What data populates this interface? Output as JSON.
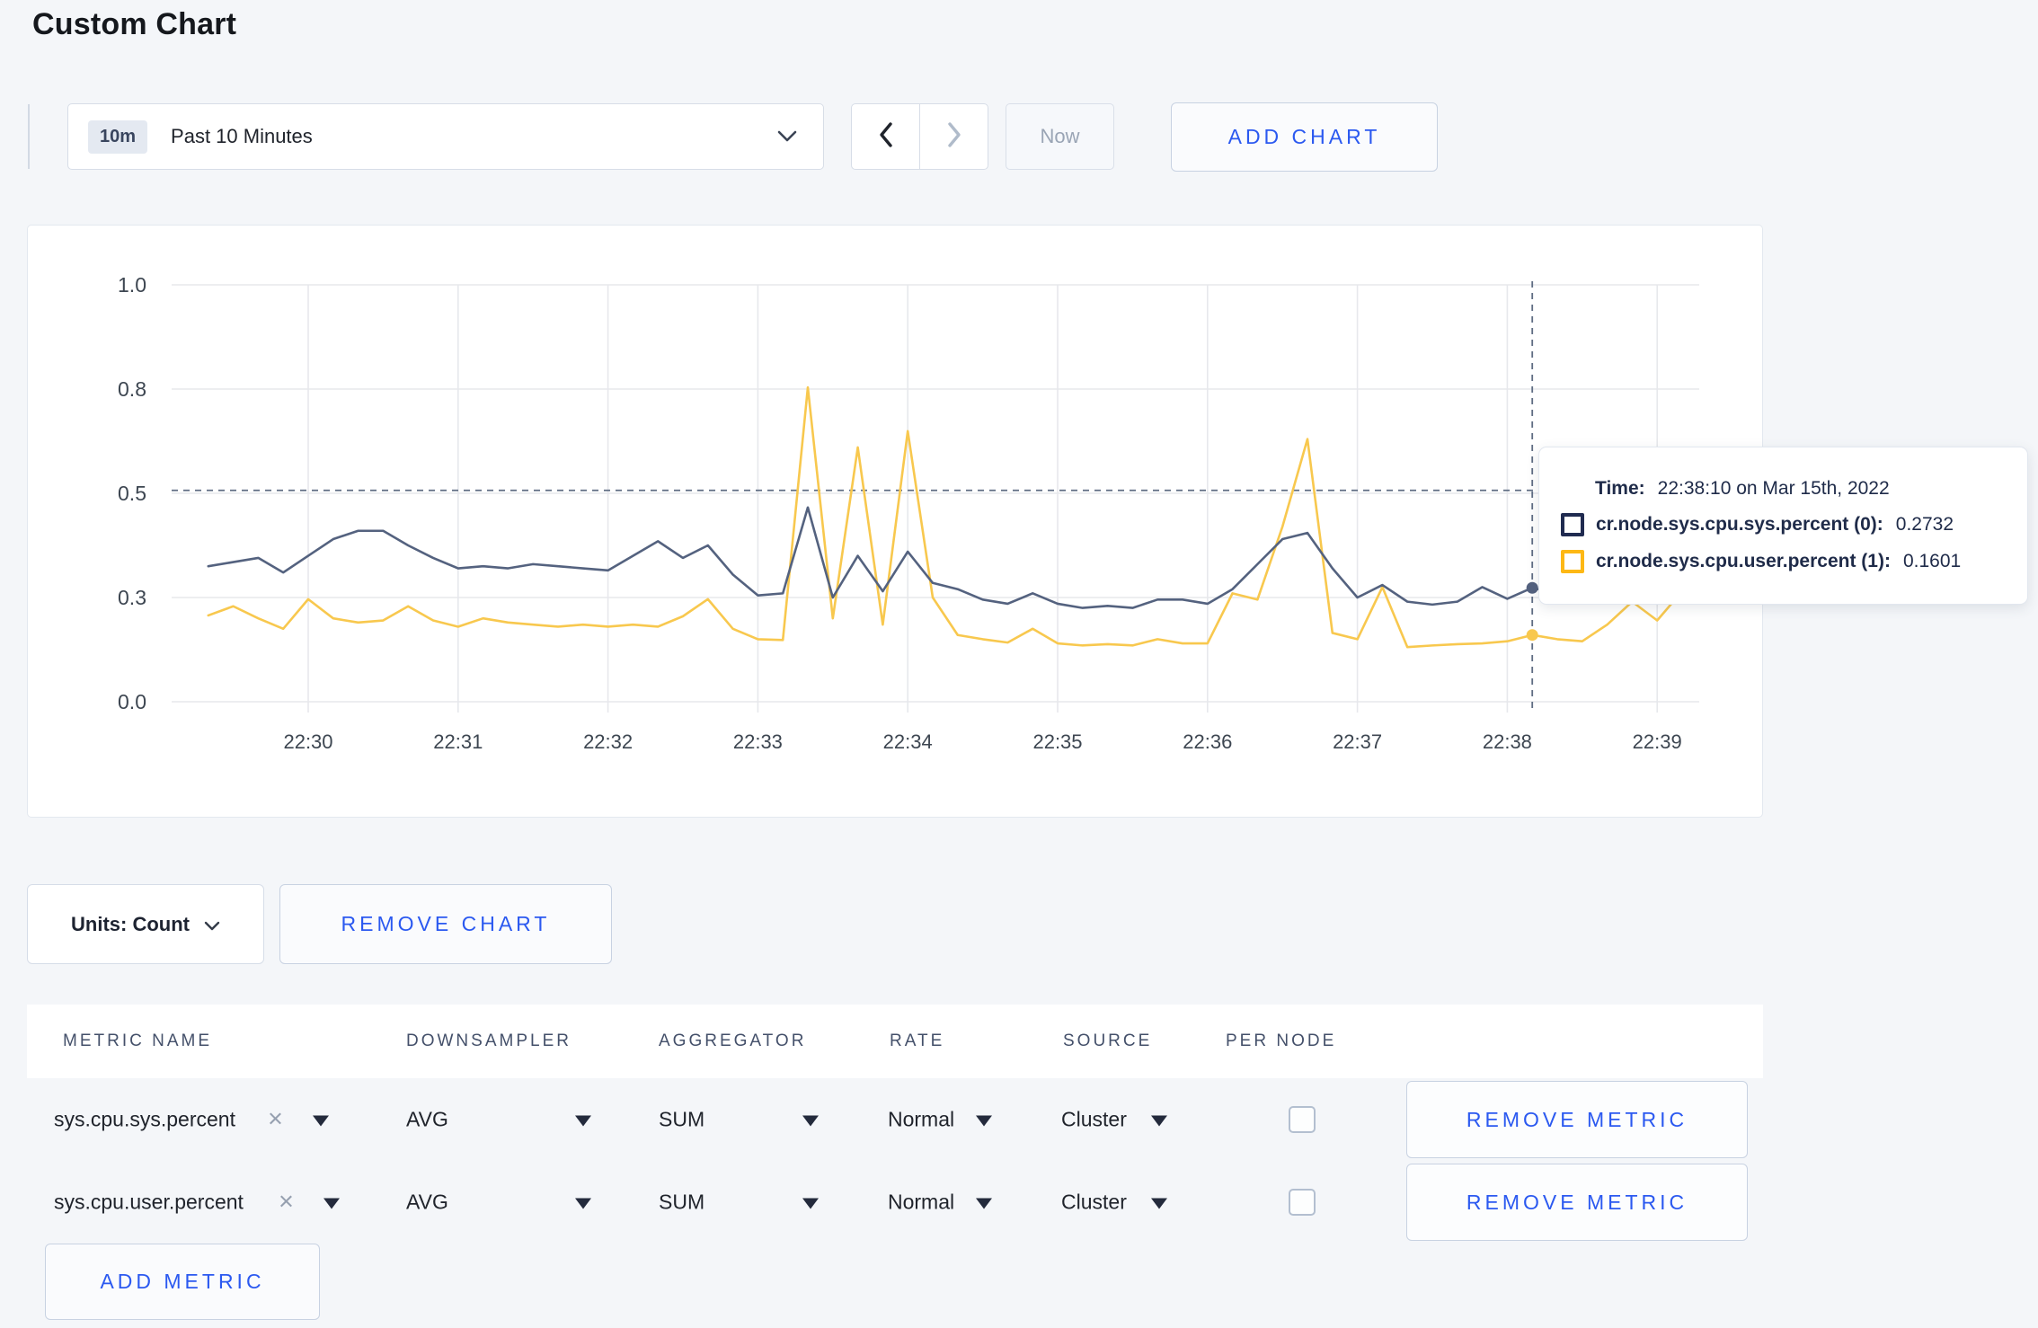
{
  "page": {
    "title": "Custom Chart"
  },
  "toolbar": {
    "time_selector": {
      "badge": "10m",
      "label": "Past 10 Minutes"
    },
    "now_button": "Now",
    "add_chart_button": "ADD CHART"
  },
  "chart_data": {
    "type": "line",
    "title": "",
    "xlabel": "",
    "ylabel": "",
    "x_tick_labels": [
      "22:30",
      "22:31",
      "22:32",
      "22:33",
      "22:34",
      "22:35",
      "22:36",
      "22:37",
      "22:38",
      "22:39"
    ],
    "x_tick_seconds": [
      0,
      60,
      120,
      180,
      240,
      300,
      360,
      420,
      480,
      540
    ],
    "y_ticks": [
      {
        "value": 0.0,
        "label": "0.0"
      },
      {
        "value": 0.25,
        "label": "0.3"
      },
      {
        "value": 0.5,
        "label": "0.5"
      },
      {
        "value": 0.75,
        "label": "0.8"
      },
      {
        "value": 1.0,
        "label": "1.0"
      }
    ],
    "ylim": [
      0,
      1.0
    ],
    "grid": true,
    "start_seconds": -40,
    "step_seconds": 10,
    "series": [
      {
        "name": "cr.node.sys.cpu.sys.percent",
        "color": "#54627f",
        "values": [
          0.325,
          0.335,
          0.345,
          0.31,
          0.35,
          0.39,
          0.41,
          0.41,
          0.375,
          0.345,
          0.32,
          0.325,
          0.32,
          0.33,
          0.325,
          0.32,
          0.315,
          0.35,
          0.385,
          0.345,
          0.375,
          0.305,
          0.255,
          0.26,
          0.466,
          0.25,
          0.35,
          0.265,
          0.36,
          0.285,
          0.27,
          0.245,
          0.235,
          0.26,
          0.235,
          0.225,
          0.23,
          0.225,
          0.245,
          0.245,
          0.235,
          0.27,
          0.33,
          0.39,
          0.405,
          0.32,
          0.25,
          0.28,
          0.24,
          0.233,
          0.24,
          0.275,
          0.247,
          0.2732,
          0.26,
          0.285,
          0.305,
          0.295,
          0.29,
          0.295
        ]
      },
      {
        "name": "cr.node.sys.cpu.user.percent",
        "color": "#f8c84e",
        "values": [
          0.207,
          0.229,
          0.2,
          0.175,
          0.246,
          0.2,
          0.19,
          0.195,
          0.229,
          0.195,
          0.18,
          0.2,
          0.19,
          0.185,
          0.18,
          0.185,
          0.18,
          0.185,
          0.18,
          0.205,
          0.246,
          0.175,
          0.15,
          0.148,
          0.754,
          0.2,
          0.61,
          0.185,
          0.649,
          0.25,
          0.16,
          0.15,
          0.142,
          0.175,
          0.14,
          0.135,
          0.138,
          0.135,
          0.15,
          0.14,
          0.14,
          0.26,
          0.245,
          0.42,
          0.63,
          0.165,
          0.15,
          0.275,
          0.131,
          0.135,
          0.138,
          0.14,
          0.145,
          0.1601,
          0.15,
          0.145,
          0.185,
          0.24,
          0.195,
          0.265
        ]
      }
    ],
    "crosshair": {
      "time_seconds": 490,
      "hline_value": 0.507,
      "color": "#5f6d83"
    },
    "hover_points": [
      {
        "series": 0,
        "time_seconds": 490,
        "value": 0.2732
      },
      {
        "series": 1,
        "time_seconds": 490,
        "value": 0.1601
      }
    ],
    "legend_position": "tooltip"
  },
  "tooltip": {
    "time_label": "Time:",
    "time_value": "22:38:10 on Mar 15th, 2022",
    "series": [
      {
        "label": "cr.node.sys.cpu.sys.percent (0):",
        "value": "0.2732",
        "swatch": "#202b50"
      },
      {
        "label": "cr.node.sys.cpu.user.percent (1):",
        "value": "0.1601",
        "swatch": "#fdb815"
      }
    ]
  },
  "chart_controls": {
    "units_button": "Units: Count",
    "remove_chart_button": "REMOVE CHART"
  },
  "metrics_table": {
    "headers": [
      "METRIC NAME",
      "DOWNSAMPLER",
      "AGGREGATOR",
      "RATE",
      "SOURCE",
      "PER NODE"
    ],
    "rows": [
      {
        "metric": "sys.cpu.sys.percent",
        "downsampler": "AVG",
        "aggregator": "SUM",
        "rate": "Normal",
        "source": "Cluster",
        "per_node_checked": false,
        "remove_button": "REMOVE METRIC"
      },
      {
        "metric": "sys.cpu.user.percent",
        "downsampler": "AVG",
        "aggregator": "SUM",
        "rate": "Normal",
        "source": "Cluster",
        "per_node_checked": false,
        "remove_button": "REMOVE METRIC"
      }
    ],
    "add_metric_button": "ADD METRIC"
  },
  "icons": {
    "remove_x": "×"
  },
  "colors": {
    "accent_blue": "#2b59f0",
    "page_background": "#f4f6f9",
    "gridline": "#e7e8ec",
    "series_sys": "#54627f",
    "series_user": "#f8c84e"
  }
}
